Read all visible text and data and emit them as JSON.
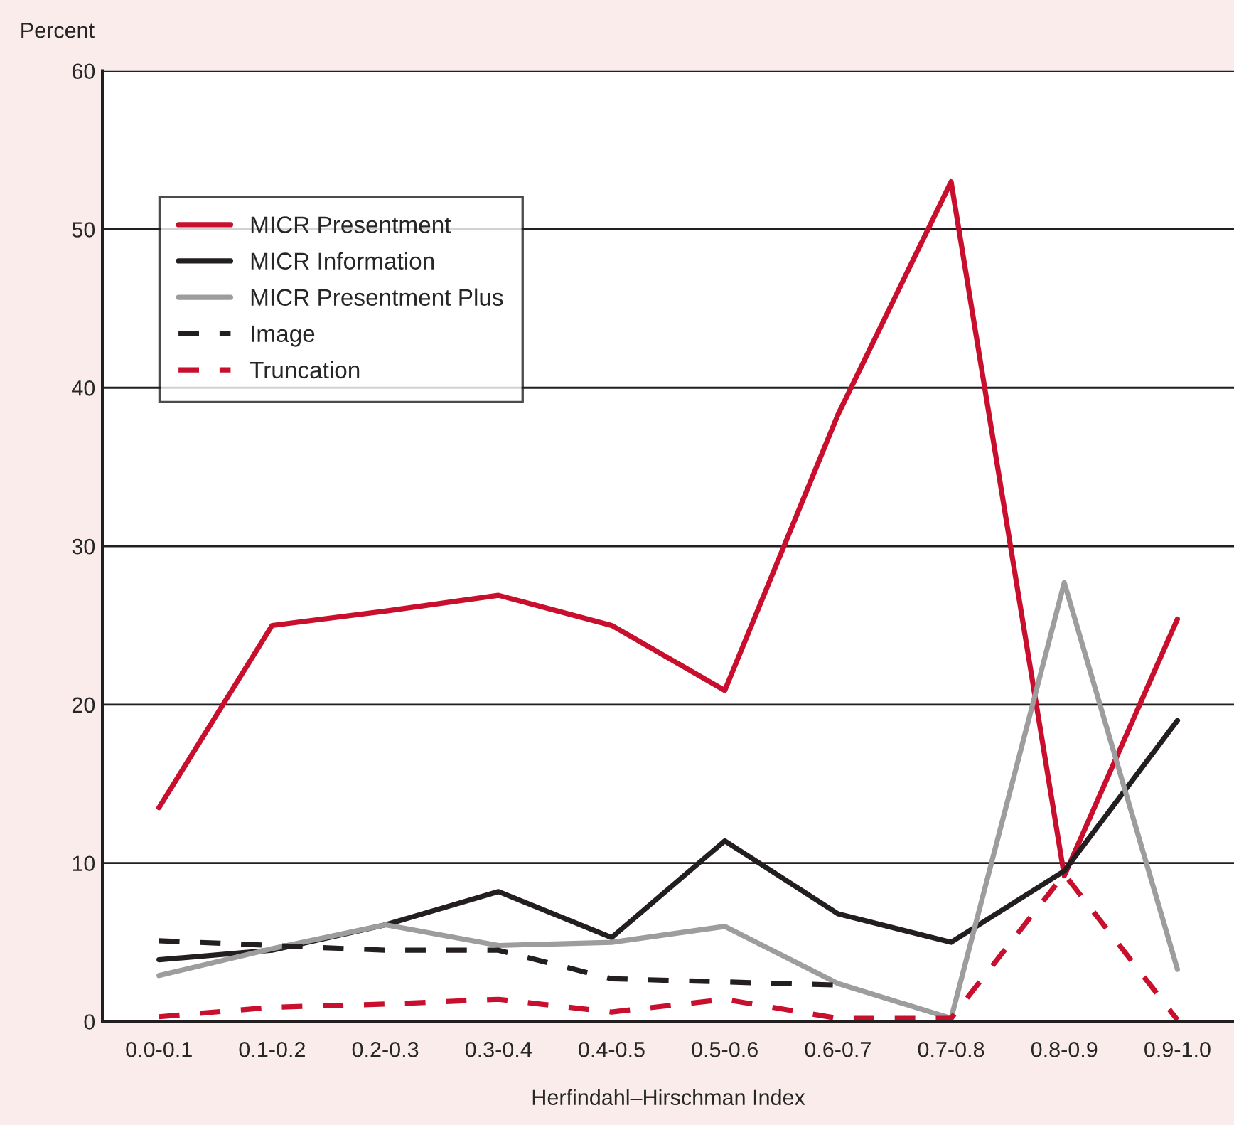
{
  "chart_data": {
    "type": "line",
    "ylabel": "Percent",
    "xlabel": "Herfindahl–Hirschman Index",
    "categories": [
      "0.0-0.1",
      "0.1-0.2",
      "0.2-0.3",
      "0.3-0.4",
      "0.4-0.5",
      "0.5-0.6",
      "0.6-0.7",
      "0.7-0.8",
      "0.8-0.9",
      "0.9-1.0"
    ],
    "series": [
      {
        "name": "MICR Presentment",
        "color": "#c8102e",
        "line_style": "solid",
        "values": [
          13.5,
          25.0,
          25.9,
          26.9,
          25.0,
          20.9,
          38.3,
          53.0,
          9.2,
          25.4
        ]
      },
      {
        "name": "MICR Information",
        "color": "#231f20",
        "line_style": "solid",
        "values": [
          3.9,
          4.5,
          6.1,
          8.2,
          5.3,
          11.4,
          6.8,
          5.0,
          9.5,
          19.0
        ]
      },
      {
        "name": "MICR Presentment Plus",
        "color": "#9d9d9d",
        "line_style": "solid",
        "values": [
          2.9,
          4.6,
          6.1,
          4.8,
          5.0,
          6.0,
          2.4,
          0.2,
          27.7,
          3.3
        ]
      },
      {
        "name": "Image",
        "color": "#231f20",
        "line_style": "dashed",
        "values": [
          5.1,
          4.8,
          4.5,
          4.5,
          2.7,
          2.5,
          2.3,
          null,
          null,
          null
        ]
      },
      {
        "name": "Truncation",
        "color": "#c8102e",
        "line_style": "dashed",
        "values": [
          0.3,
          0.9,
          1.1,
          1.4,
          0.6,
          1.4,
          0.2,
          0.2,
          9.3,
          0.1
        ]
      }
    ],
    "ylim": [
      0,
      60
    ],
    "yticks": [
      0,
      10,
      20,
      30,
      40,
      50,
      60
    ],
    "grid": "y",
    "legend": "top left",
    "marker": "none"
  }
}
